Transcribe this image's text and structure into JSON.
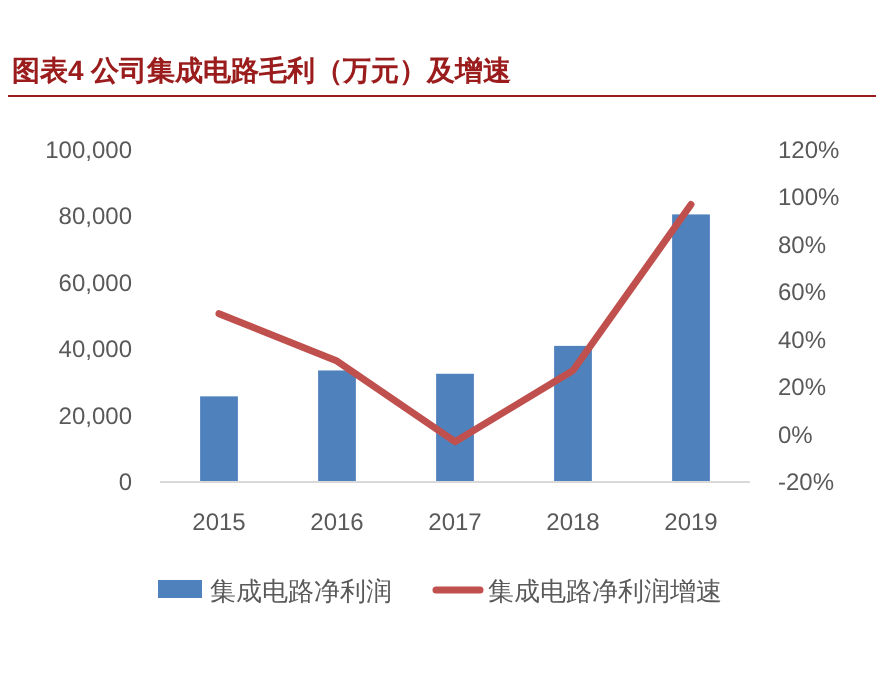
{
  "chart_data": {
    "type": "bar",
    "title": "图表4 公司集成电路毛利（万元）及增速",
    "categories": [
      "2015",
      "2016",
      "2017",
      "2018",
      "2019"
    ],
    "series": [
      {
        "name": "集成电路净利润",
        "color": "#4f81bd",
        "values": [
          25800,
          33600,
          32600,
          41000,
          80600
        ]
      },
      {
        "name": "集成电路净利润增速",
        "type": "line",
        "axis": "y2",
        "color": "#c0504d",
        "values": [
          51,
          31,
          -3,
          27,
          97
        ]
      }
    ],
    "ylim": [
      0,
      100000
    ],
    "yticks": [
      {
        "value": 0,
        "label": "0"
      },
      {
        "value": 20000,
        "label": "20,000"
      },
      {
        "value": 40000,
        "label": "40,000"
      },
      {
        "value": 60000,
        "label": "60,000"
      },
      {
        "value": 80000,
        "label": "80,000"
      },
      {
        "value": 100000,
        "label": "100,000"
      }
    ],
    "y2lim": [
      -20,
      120
    ],
    "y2ticks": [
      {
        "value": -20,
        "label": "-20%"
      },
      {
        "value": 0,
        "label": "0%"
      },
      {
        "value": 20,
        "label": "20%"
      },
      {
        "value": 40,
        "label": "40%"
      },
      {
        "value": 60,
        "label": "60%"
      },
      {
        "value": 80,
        "label": "80%"
      },
      {
        "value": 100,
        "label": "100%"
      },
      {
        "value": 120,
        "label": "120%"
      }
    ],
    "grid": false,
    "legend": "bottom",
    "marker": "none"
  }
}
